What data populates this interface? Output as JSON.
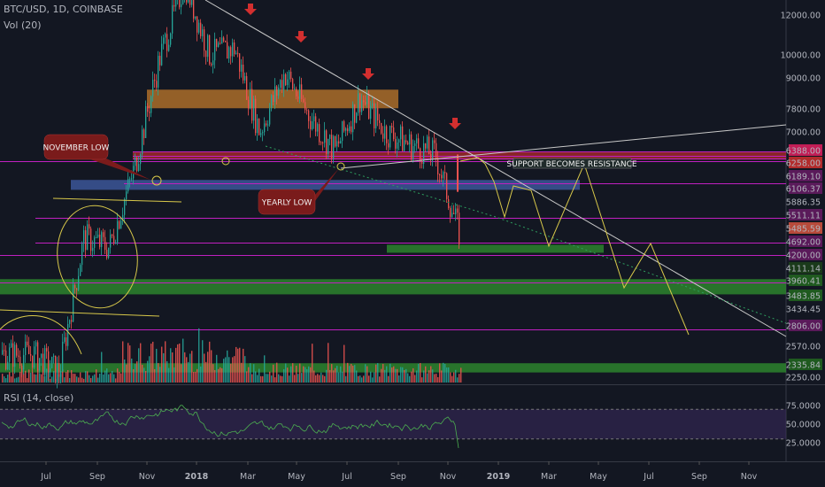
{
  "header": {
    "symbol": "BTC/USD, 1D, COINBASE",
    "volume": "Vol (20)",
    "rsi": "RSI (14, close)"
  },
  "colors": {
    "background": "#131722",
    "up": "#26a69a",
    "down": "#ef5350",
    "magenta": "#c020c0",
    "green_band": "#2e8b2e",
    "red_band": "#b22b2b",
    "orange_band": "#b5732b",
    "blue_band": "#3f5aa0",
    "projection": "#d8c84a",
    "rsi_fill": "#3b2a5e",
    "arrow": "#d32f2f"
  },
  "chart_data": {
    "type": "candlestick",
    "y_scale": "log",
    "price_ticks": [
      "12000.00",
      "10000.00",
      "9000.00",
      "7800.00",
      "7000.00",
      "6388.00",
      "6258.00",
      "6189.10",
      "6106.37",
      "5886.35",
      "5511.11",
      "5485.59",
      "4692.00",
      "4200.00",
      "4111.14",
      "3960.41",
      "3483.85",
      "3434.45",
      "2806.00",
      "2570.00",
      "2335.84",
      "2250.00"
    ],
    "price_ticks_highlight": [
      "6388.00",
      "6258.00",
      "5485.59"
    ],
    "time_ticks": [
      "Jul",
      "Sep",
      "Nov",
      "2018",
      "Mar",
      "May",
      "Jul",
      "Sep",
      "Nov",
      "2019",
      "Mar",
      "May",
      "Jul",
      "Sep",
      "Nov"
    ],
    "rsi_ticks": [
      "75.0000",
      "50.0000",
      "25.0000"
    ],
    "horizontal_levels": [
      6388,
      6258,
      6189.1,
      6106.37,
      5511.11,
      4692,
      4200,
      3960.41,
      3483.85,
      2806
    ],
    "zones": [
      {
        "label": "",
        "from": 7800,
        "to": 8500,
        "color": "orange"
      },
      {
        "label": "",
        "from": 6150,
        "to": 6388,
        "color": "red"
      },
      {
        "label": "",
        "from": 5350,
        "to": 5600,
        "color": "blue"
      },
      {
        "label": "",
        "from": 4000,
        "to": 4150,
        "color": "green"
      },
      {
        "label": "",
        "from": 3300,
        "to": 3540,
        "color": "green"
      },
      {
        "label": "",
        "from": 2300,
        "to": 2400,
        "color": "green"
      }
    ],
    "annotations": [
      {
        "text": "NOVEMBER LOW"
      },
      {
        "text": "YEARLY LOW"
      },
      {
        "text": "SUPPORT BECOMES RESISTANCE"
      }
    ],
    "close_series": [
      {
        "date": "2017-06",
        "value": 2500
      },
      {
        "date": "2017-07",
        "value": 2300
      },
      {
        "date": "2017-08",
        "value": 4300
      },
      {
        "date": "2017-09",
        "value": 4100
      },
      {
        "date": "2017-10",
        "value": 5900
      },
      {
        "date": "2017-11",
        "value": 9800
      },
      {
        "date": "2017-12",
        "value": 14000
      },
      {
        "date": "2018-01",
        "value": 10000
      },
      {
        "date": "2018-02",
        "value": 10300
      },
      {
        "date": "2018-03",
        "value": 7000
      },
      {
        "date": "2018-04",
        "value": 9200
      },
      {
        "date": "2018-05",
        "value": 7500
      },
      {
        "date": "2018-06",
        "value": 6400
      },
      {
        "date": "2018-07",
        "value": 8200
      },
      {
        "date": "2018-08",
        "value": 7000
      },
      {
        "date": "2018-09",
        "value": 6600
      },
      {
        "date": "2018-10",
        "value": 6300
      },
      {
        "date": "2018-11",
        "value": 4300
      }
    ],
    "rsi_range": [
      0,
      100
    ],
    "last_rsi": 18
  }
}
